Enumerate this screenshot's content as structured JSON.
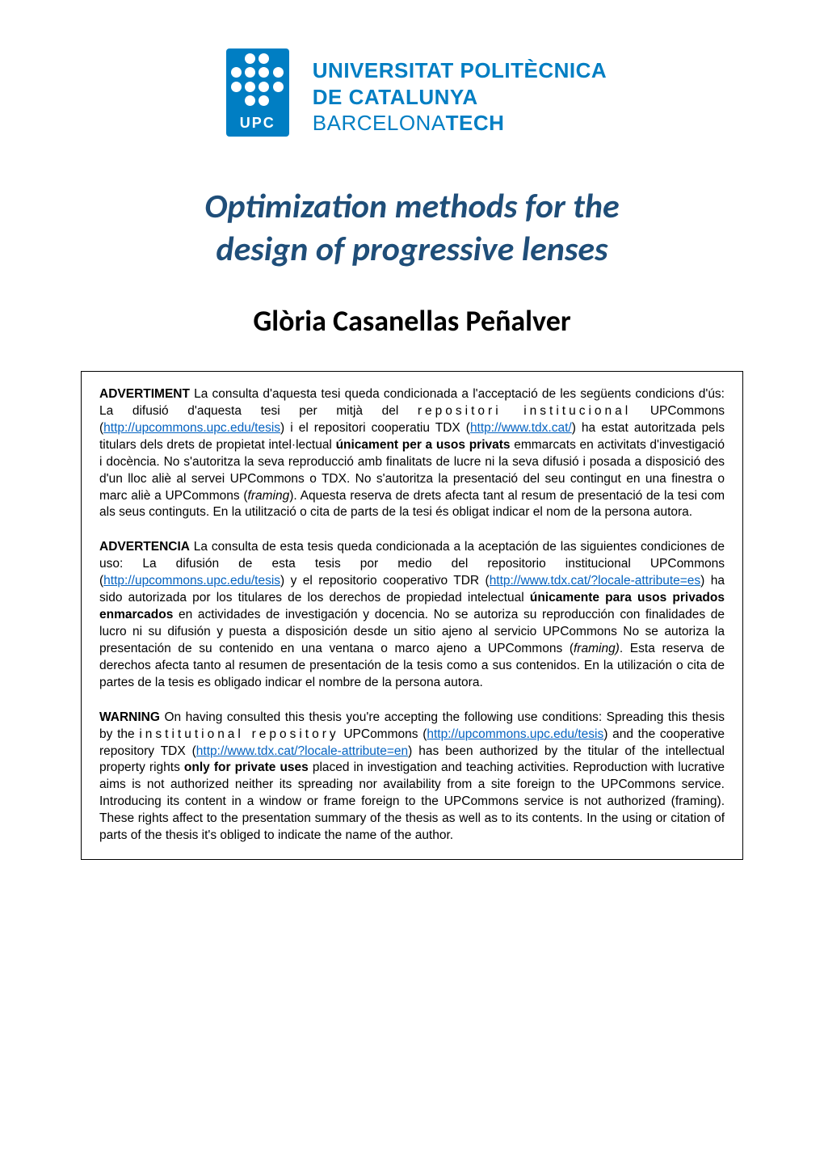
{
  "logo": {
    "label": "UPC",
    "line1": "UNIVERSITAT POLITÈCNICA",
    "line2": "DE CATALUNYA",
    "line3_thin": "BARCELONA",
    "line3_bold": "TECH",
    "brand_color": "#007ec3"
  },
  "thesis": {
    "title_line1": "Optimization methods for the",
    "title_line2": "design of progressive lenses",
    "title_color": "#1f4e79",
    "title_fontsize": 42
  },
  "author": {
    "name": "Glòria Casanellas Peñalver",
    "fontsize": 36
  },
  "notices": {
    "ca": {
      "label": "ADVERTIMENT",
      "body_pre": " La consulta d'aquesta tesi queda condicionada a l'acceptació de les següents condicions d'ús: La difusió d'aquesta tesi per mitjà del ",
      "spaced1": "repositori institucional",
      "body_mid1": " UPCommons (",
      "link1_text": "http://upcommons.upc.edu/tesis",
      "body_mid2": ") i el repositori cooperatiu TDX (",
      "link2_text": "http://www.tdx.cat/",
      "body_mid2b": ") ha estat autoritzada pels titulars dels drets de propietat intel·lectual ",
      "bold1": "únicament per a usos privats",
      "body_mid3": " emmarcats en activitats d'investigació i docència. No s'autoritza la seva reproducció amb finalitats de lucre ni la seva difusió i posada a disposició des d'un lloc aliè al servei UPCommons o TDX. No s'autoritza la presentació del seu contingut en una finestra o marc aliè a UPCommons (",
      "italic1": "framing",
      "body_end": "). Aquesta reserva de drets afecta tant al resum de presentació de la tesi com als seus continguts. En la utilització o cita de parts de la tesi és obligat indicar el nom de la persona autora."
    },
    "es": {
      "label": "ADVERTENCIA",
      "body_pre": " La consulta de esta tesis queda condicionada a la aceptación de las siguientes condiciones de uso: La difusión de esta tesis por medio del repositorio institucional UPCommons (",
      "link1_text": "http://upcommons.upc.edu/tesis",
      "body_mid1": ") y el repositorio cooperativo TDR (",
      "link2_text": "http://www.tdx.cat/?locale-attribute=es",
      "body_mid2": ") ha sido autorizada por los titulares de los derechos de propiedad intelectual ",
      "bold1": "únicamente para usos privados enmarcados",
      "body_mid3": " en actividades de investigación y docencia. No se autoriza su reproducción con finalidades de lucro ni su difusión y puesta a disposición desde un sitio ajeno al servicio UPCommons No se autoriza la presentación de su contenido en una ventana o marco ajeno a UPCommons (",
      "italic1": "framing)",
      "body_end": ". Esta reserva de derechos afecta tanto al resumen de presentación de la tesis como a sus contenidos. En la utilización o cita de partes de la tesis es obligado indicar el nombre de la persona autora."
    },
    "en": {
      "label": "WARNING",
      "body_pre": " On having consulted this thesis you're accepting the following use conditions: Spreading this thesis by the ",
      "spaced1": "institutional repository",
      "body_mid0": " UPCommons (",
      "link1_text": "http://upcommons.upc.edu/tesis",
      "body_mid1": ") and the cooperative repository TDX (",
      "link2_text": "http://www.tdx.cat/?locale-attribute=en",
      "body_mid2": ") has been authorized by the titular of the intellectual property rights ",
      "bold1": "only for private uses",
      "body_mid3": " placed in investigation and teaching activities. Reproduction with lucrative aims is not authorized neither its spreading nor availability from a site foreign to the UPCommons service. Introducing its content in a window or frame foreign to the UPCommons service is not authorized (framing). These rights affect to the presentation summary of the thesis as well as to its contents. In the using or citation of parts of the thesis it's obliged to indicate the name of the author."
    }
  },
  "styling": {
    "page_bg": "#ffffff",
    "text_color": "#000000",
    "link_color": "#0563c1",
    "border_color": "#000000",
    "body_fontsize": 15.5
  }
}
